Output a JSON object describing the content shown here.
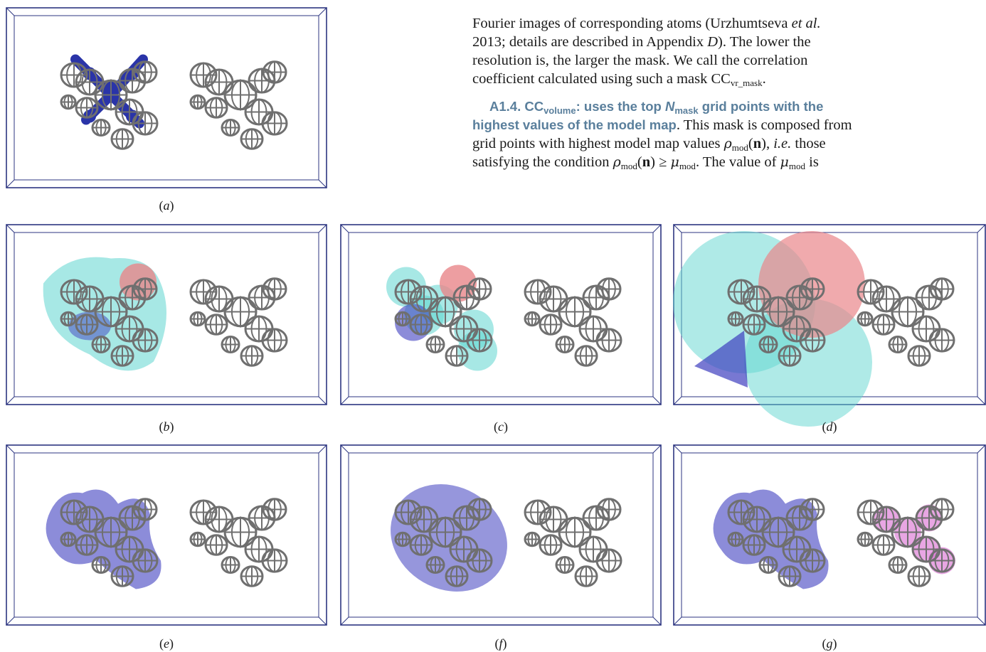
{
  "text": {
    "line1_a": "Fourier images of corresponding atoms (Urzhumtseva ",
    "line1_etal": "et al.",
    "line2_a": "2013; details are described in Appendix ",
    "line2_d": "D",
    "line2_b": "). The lower the",
    "line3": "resolution is, the larger the mask. We call the correlation",
    "line4_a": "coefficient calculated using such a mask CC",
    "line4_sub": "vr_mask",
    "line4_b": ".",
    "heading_a": "A1.4. CC",
    "heading_sub": "volume",
    "heading_b": ": uses the top ",
    "heading_n": "N",
    "heading_nsub": "mask",
    "heading_c": " grid points with the",
    "heading2": "highest values of the model map",
    "line6_tail": ". This mask is composed from",
    "line7_a": "grid points with highest model map values ",
    "rho": "ρ",
    "mod": "mod",
    "bold_n": "n",
    "ie": "i.e.",
    "line7_c": " those",
    "line8_a": "satisfying the condition ",
    "geq": " ≥ ",
    "mu": "μ",
    "line8_c": ". The value of ",
    "line8_d": " is"
  },
  "panels": [
    {
      "id": "a",
      "label": "a",
      "mask": "single-atoms"
    },
    {
      "id": "b",
      "label": "b",
      "mask": "envelope"
    },
    {
      "id": "c",
      "label": "c",
      "mask": "atom-spheres"
    },
    {
      "id": "d",
      "label": "d",
      "mask": "large-spheres"
    },
    {
      "id": "e",
      "label": "e",
      "mask": "blob"
    },
    {
      "id": "f",
      "label": "f",
      "mask": "ellipsoid"
    },
    {
      "id": "g",
      "label": "g",
      "mask": "blob-plus-pink"
    }
  ],
  "colors": {
    "frame": "#2c3580",
    "mesh": "#6f6f6f",
    "atom_blue": "#2a34a8",
    "cyan_mask": "#5fd6d0",
    "red_mask": "#e9868a",
    "blue_mask": "#3f3fbf",
    "pink_mask": "#d86bd0",
    "heading": "#5a7f9c"
  }
}
